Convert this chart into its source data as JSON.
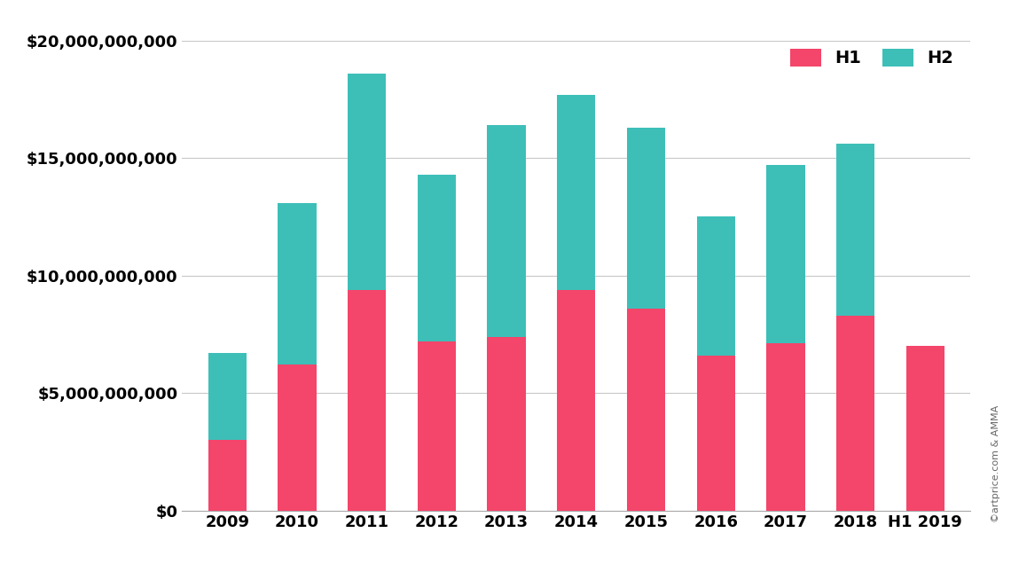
{
  "categories": [
    "2009",
    "2010",
    "2011",
    "2012",
    "2013",
    "2014",
    "2015",
    "2016",
    "2017",
    "2018",
    "H1 2019"
  ],
  "h1_values": [
    3000000000,
    6200000000,
    9400000000,
    7200000000,
    7400000000,
    9400000000,
    8600000000,
    6600000000,
    7100000000,
    8300000000,
    7000000000
  ],
  "h2_values": [
    3700000000,
    6900000000,
    9200000000,
    7100000000,
    9000000000,
    8300000000,
    7700000000,
    5900000000,
    7600000000,
    7300000000,
    0
  ],
  "h1_color": "#F4456A",
  "h2_color": "#3DBFB8",
  "background_color": "#FFFFFF",
  "ylim": [
    0,
    20000000000
  ],
  "yticks": [
    0,
    5000000000,
    10000000000,
    15000000000,
    20000000000
  ],
  "grid_color": "#C8C8C8",
  "legend_labels": [
    "H1",
    "H2"
  ],
  "watermark": "©artprice.com & AMMA",
  "tick_fontsize": 13,
  "legend_fontsize": 14,
  "bar_width": 0.55
}
